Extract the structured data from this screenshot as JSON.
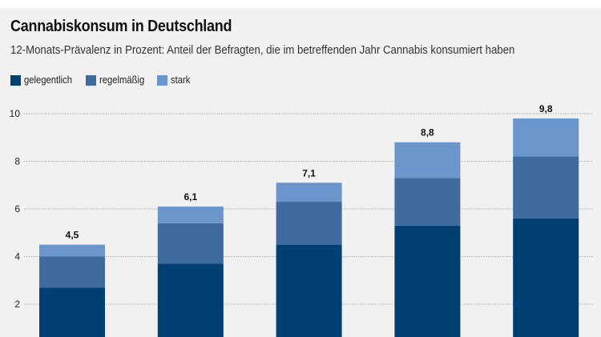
{
  "chart_data": {
    "type": "bar",
    "stacked": true,
    "title": "Cannabiskonsum in Deutschland",
    "subtitle": "12-Monats-Prävalenz in Prozent: Anteil der Befragten, die im betreffenden Jahr Cannabis konsumiert haben",
    "xlabel": "",
    "ylabel": "",
    "categories": [
      "",
      "",
      "",
      "",
      ""
    ],
    "series": [
      {
        "name": "gelegentlich",
        "color": "#003f72",
        "values": [
          2.7,
          3.7,
          4.5,
          5.3,
          5.6
        ]
      },
      {
        "name": "regelmäßig",
        "color": "#3e6a9e",
        "values": [
          1.3,
          1.7,
          1.8,
          2.0,
          2.6
        ]
      },
      {
        "name": "stark",
        "color": "#6b96cc",
        "values": [
          0.5,
          0.7,
          0.8,
          1.5,
          1.6
        ]
      }
    ],
    "totals": [
      4.5,
      6.1,
      7.1,
      8.8,
      9.8
    ],
    "total_labels": [
      "4,5",
      "6,1",
      "7,1",
      "8,8",
      "9,8"
    ],
    "yticks": [
      2,
      4,
      6,
      8,
      10
    ],
    "ylim": [
      0,
      10
    ],
    "grid": true,
    "legend_position": "top-left"
  },
  "legend": [
    {
      "label": "gelegentlich",
      "color": "#003f72"
    },
    {
      "label": "regelmäßig",
      "color": "#3e6a9e"
    },
    {
      "label": "stark",
      "color": "#6b96cc"
    }
  ]
}
